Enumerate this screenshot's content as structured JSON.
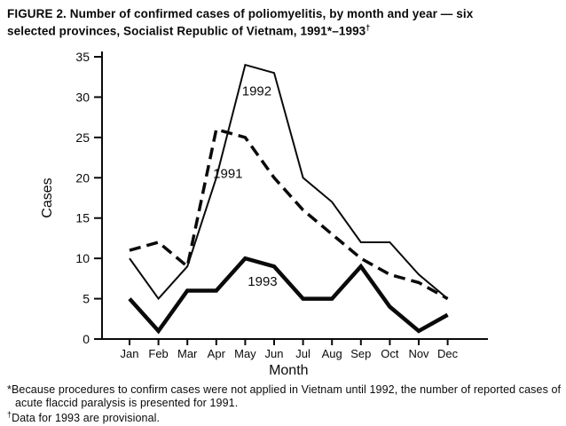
{
  "title": {
    "line1": "FIGURE 2. Number of confirmed cases of poliomyelitis, by month and year — six",
    "line2_pre": "selected provinces, Socialist Republic of Vietnam, 1991*–1993",
    "line2_sup": "†"
  },
  "footnotes": {
    "note1_marker": "*",
    "note1_text": "Because procedures to confirm cases were not applied in Vietnam until 1992, the number of reported cases of acute flaccid paralysis is presented for 1991.",
    "note2_marker": "†",
    "note2_text": "Data for 1993 are provisional."
  },
  "chart_data": {
    "type": "line",
    "title": "Number of confirmed cases of poliomyelitis, by month and year, six selected provinces, Socialist Republic of Vietnam, 1991-1993",
    "categories": [
      "Jan",
      "Feb",
      "Mar",
      "Apr",
      "May",
      "Jun",
      "Jul",
      "Aug",
      "Sep",
      "Oct",
      "Nov",
      "Dec"
    ],
    "series": [
      {
        "name": "1992",
        "style": "thin-solid",
        "values": [
          10,
          5,
          9,
          20,
          34,
          33,
          20,
          17,
          12,
          12,
          8,
          5
        ]
      },
      {
        "name": "1991",
        "style": "dashed",
        "values": [
          11,
          12,
          9,
          26,
          25,
          20,
          16,
          13,
          10,
          8,
          7,
          5
        ]
      },
      {
        "name": "1993",
        "style": "thick-solid",
        "values": [
          5,
          1,
          6,
          6,
          10,
          9,
          5,
          5,
          9,
          4,
          1,
          3
        ]
      }
    ],
    "annotations": [
      {
        "text": "1992",
        "x": 4.4,
        "y": 30.2
      },
      {
        "text": "1991",
        "x": 3.4,
        "y": 20.0
      },
      {
        "text": "1993",
        "x": 4.6,
        "y": 6.6
      }
    ],
    "xlabel": "Month",
    "ylabel": "Cases",
    "ylim": [
      0,
      35
    ],
    "yticks": [
      0,
      5,
      10,
      15,
      20,
      25,
      30,
      35
    ],
    "grid": false,
    "legend_position": "inline-labels",
    "colors": {
      "line": "#0a0a0a",
      "background": "#ffffff"
    }
  }
}
